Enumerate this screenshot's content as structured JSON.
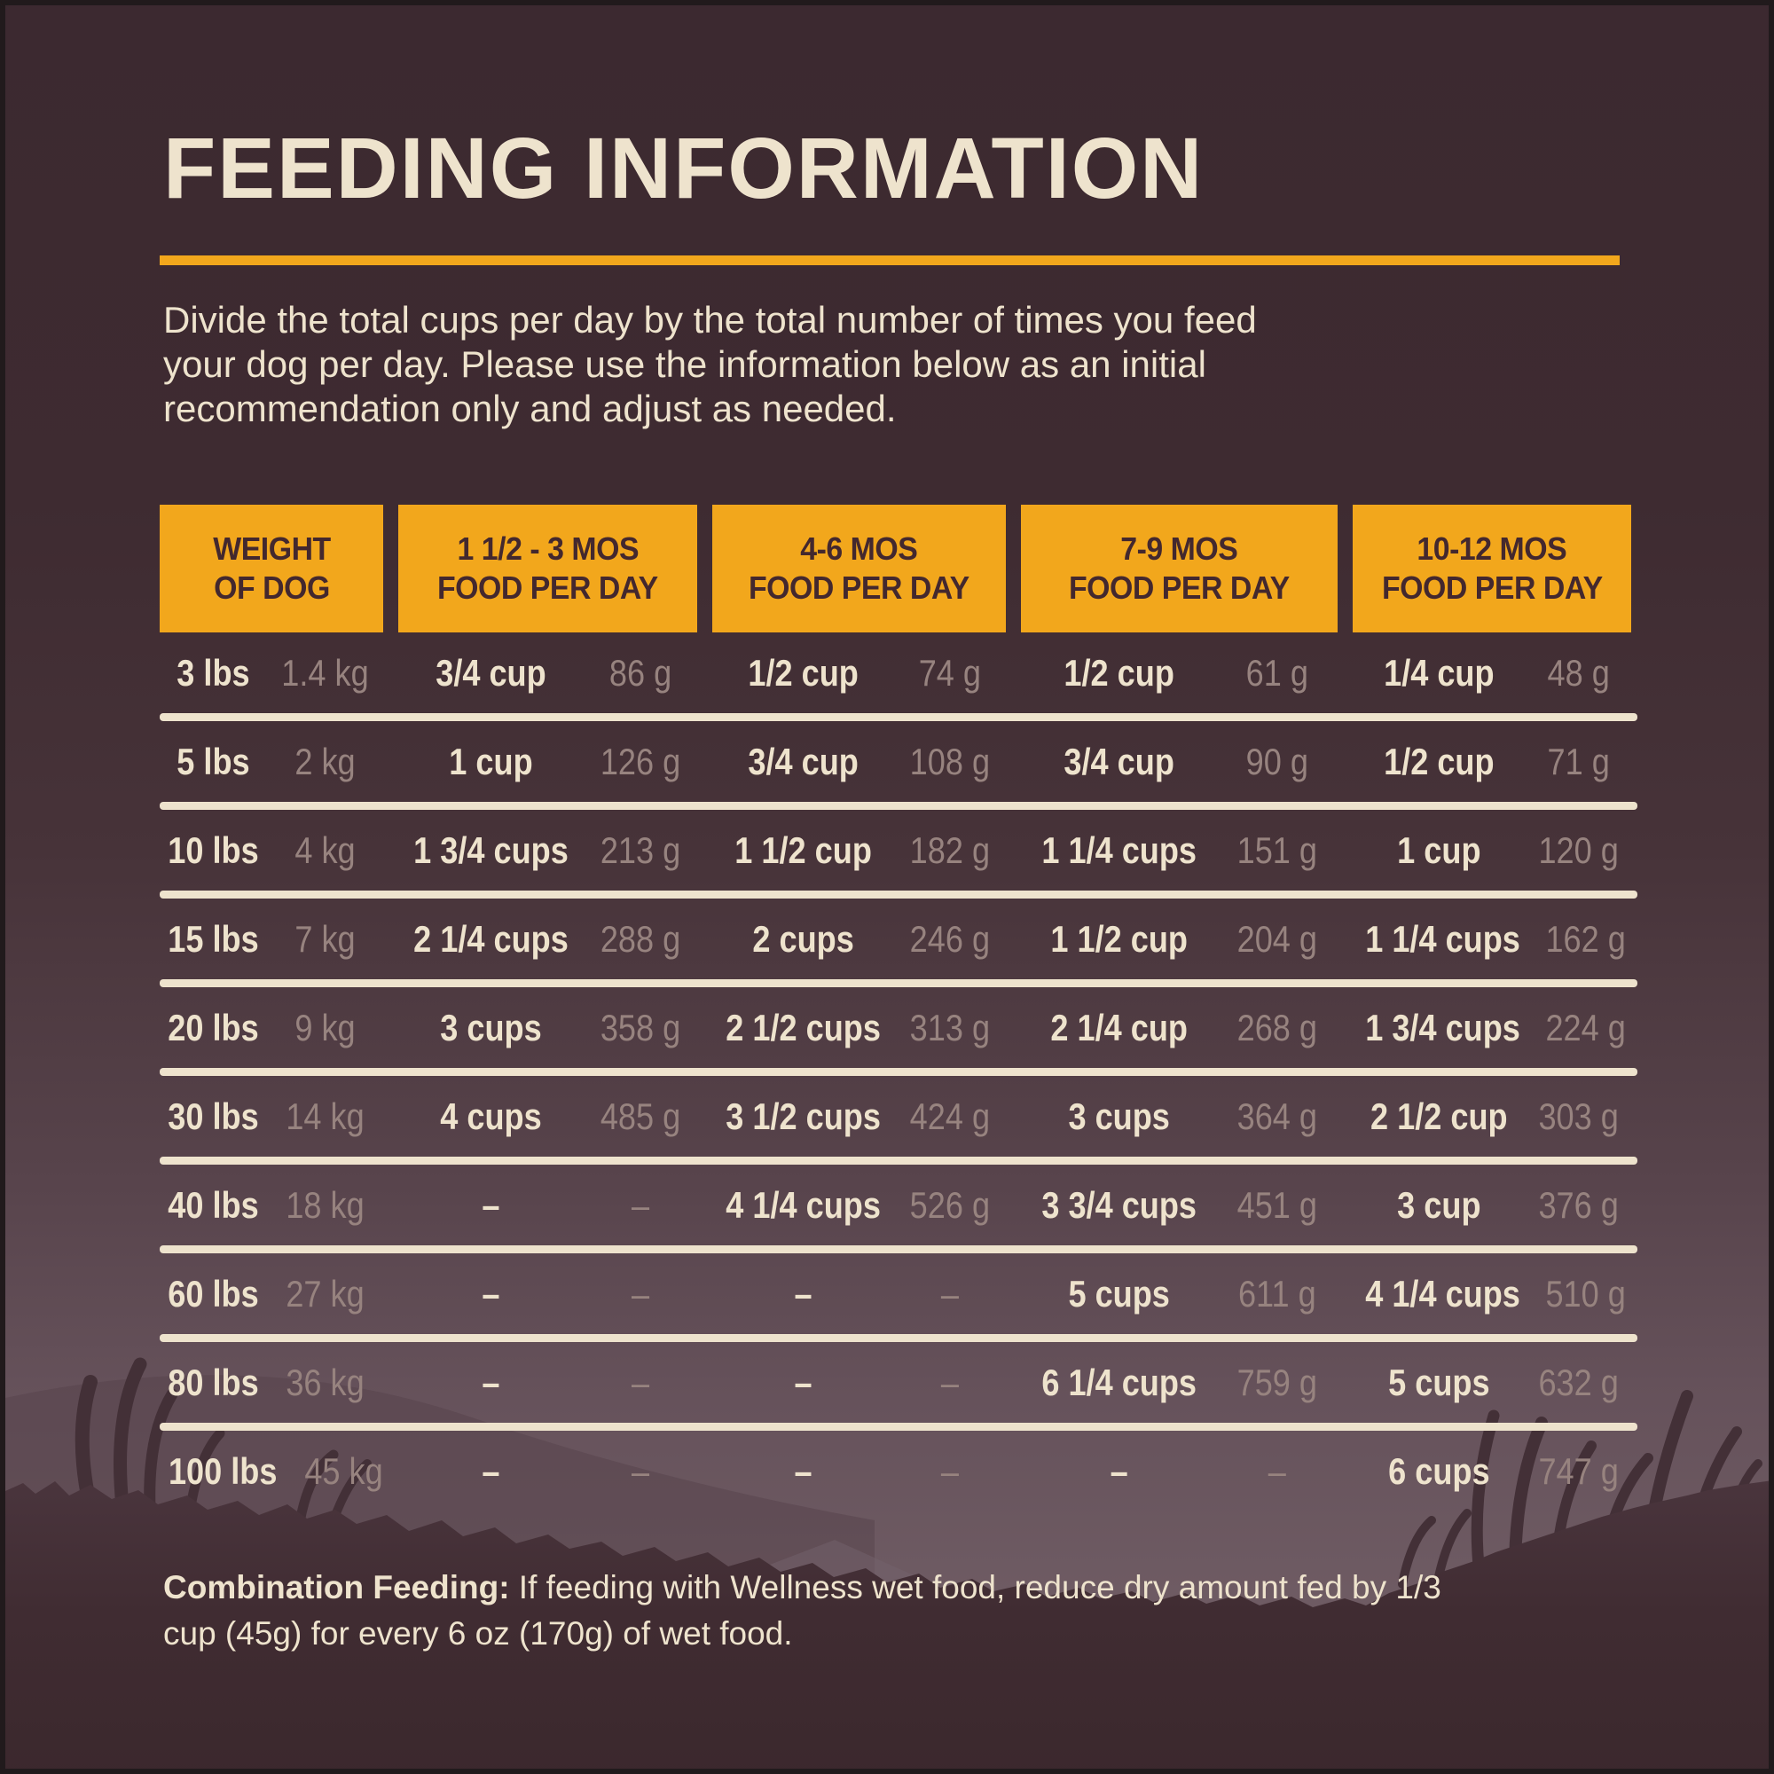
{
  "page": {
    "title": "FEEDING INFORMATION",
    "intro": {
      "line1": "Divide the total cups per day by the total number of times you feed",
      "line2": "your dog per day. Please use the information below as an initial",
      "line3": "recommendation only and adjust as needed."
    },
    "footnote": {
      "label": "Combination Feeding:",
      "line1": " If feeding with Wellness wet food, reduce dry amount fed by 1/3",
      "line2": "cup (45g) for every 6 oz (170g) of wet food."
    }
  },
  "colors": {
    "accent": "#f2a71c",
    "cream": "#eee3cd",
    "muted": "#97837f",
    "header_text": "#43282e",
    "background_top": "#3c2930",
    "background_light": "#6e5b63",
    "foreground_dark": "#3f2b31",
    "frame": "#211a1c"
  },
  "table": {
    "headers": [
      {
        "line1": "WEIGHT",
        "line2": "OF DOG"
      },
      {
        "line1": "1 1/2 - 3 MOS",
        "line2": "FOOD PER DAY"
      },
      {
        "line1": "4-6 MOS",
        "line2": "FOOD PER DAY"
      },
      {
        "line1": "7-9 MOS",
        "line2": "FOOD PER DAY"
      },
      {
        "line1": "10-12 MOS",
        "line2": "FOOD PER DAY"
      }
    ],
    "rows": [
      {
        "lbs": "3 lbs",
        "kg": "1.4 kg",
        "cols": [
          {
            "cups": "3/4 cup",
            "g": "86 g"
          },
          {
            "cups": "1/2 cup",
            "g": "74 g"
          },
          {
            "cups": "1/2 cup",
            "g": "61 g"
          },
          {
            "cups": "1/4 cup",
            "g": "48 g"
          }
        ]
      },
      {
        "lbs": "5 lbs",
        "kg": "2 kg",
        "cols": [
          {
            "cups": "1 cup",
            "g": "126 g"
          },
          {
            "cups": "3/4 cup",
            "g": "108 g"
          },
          {
            "cups": "3/4 cup",
            "g": "90 g"
          },
          {
            "cups": "1/2 cup",
            "g": "71 g"
          }
        ]
      },
      {
        "lbs": "10 lbs",
        "kg": "4 kg",
        "cols": [
          {
            "cups": "1 3/4 cups",
            "g": "213 g"
          },
          {
            "cups": "1 1/2 cup",
            "g": "182 g"
          },
          {
            "cups": "1 1/4 cups",
            "g": "151 g"
          },
          {
            "cups": "1 cup",
            "g": "120 g"
          }
        ]
      },
      {
        "lbs": "15 lbs",
        "kg": "7 kg",
        "cols": [
          {
            "cups": "2 1/4 cups",
            "g": "288 g"
          },
          {
            "cups": "2 cups",
            "g": "246 g"
          },
          {
            "cups": "1 1/2 cup",
            "g": "204 g"
          },
          {
            "cups": "1 1/4 cups",
            "g": "162 g"
          }
        ]
      },
      {
        "lbs": "20 lbs",
        "kg": "9 kg",
        "cols": [
          {
            "cups": "3 cups",
            "g": "358 g"
          },
          {
            "cups": "2 1/2 cups",
            "g": "313 g"
          },
          {
            "cups": "2 1/4 cup",
            "g": "268 g"
          },
          {
            "cups": "1 3/4 cups",
            "g": "224 g"
          }
        ]
      },
      {
        "lbs": "30 lbs",
        "kg": "14 kg",
        "cols": [
          {
            "cups": "4 cups",
            "g": "485 g"
          },
          {
            "cups": "3 1/2 cups",
            "g": "424 g"
          },
          {
            "cups": "3 cups",
            "g": "364 g"
          },
          {
            "cups": "2 1/2 cup",
            "g": "303 g"
          }
        ]
      },
      {
        "lbs": "40 lbs",
        "kg": "18 kg",
        "cols": [
          {
            "cups": "–",
            "g": "–"
          },
          {
            "cups": "4 1/4 cups",
            "g": "526 g"
          },
          {
            "cups": "3 3/4 cups",
            "g": "451 g"
          },
          {
            "cups": "3 cup",
            "g": "376 g"
          }
        ]
      },
      {
        "lbs": "60 lbs",
        "kg": "27 kg",
        "cols": [
          {
            "cups": "–",
            "g": "–"
          },
          {
            "cups": "–",
            "g": "–"
          },
          {
            "cups": "5 cups",
            "g": "611 g"
          },
          {
            "cups": "4 1/4 cups",
            "g": "510 g"
          }
        ]
      },
      {
        "lbs": "80 lbs",
        "kg": "36 kg",
        "cols": [
          {
            "cups": "–",
            "g": "–"
          },
          {
            "cups": "–",
            "g": "–"
          },
          {
            "cups": "6 1/4 cups",
            "g": "759 g"
          },
          {
            "cups": "5 cups",
            "g": "632 g"
          }
        ]
      },
      {
        "lbs": "100 lbs",
        "kg": "45 kg",
        "cols": [
          {
            "cups": "–",
            "g": "–"
          },
          {
            "cups": "–",
            "g": "–"
          },
          {
            "cups": "–",
            "g": "–"
          },
          {
            "cups": "6 cups",
            "g": "747 g"
          }
        ]
      }
    ]
  }
}
